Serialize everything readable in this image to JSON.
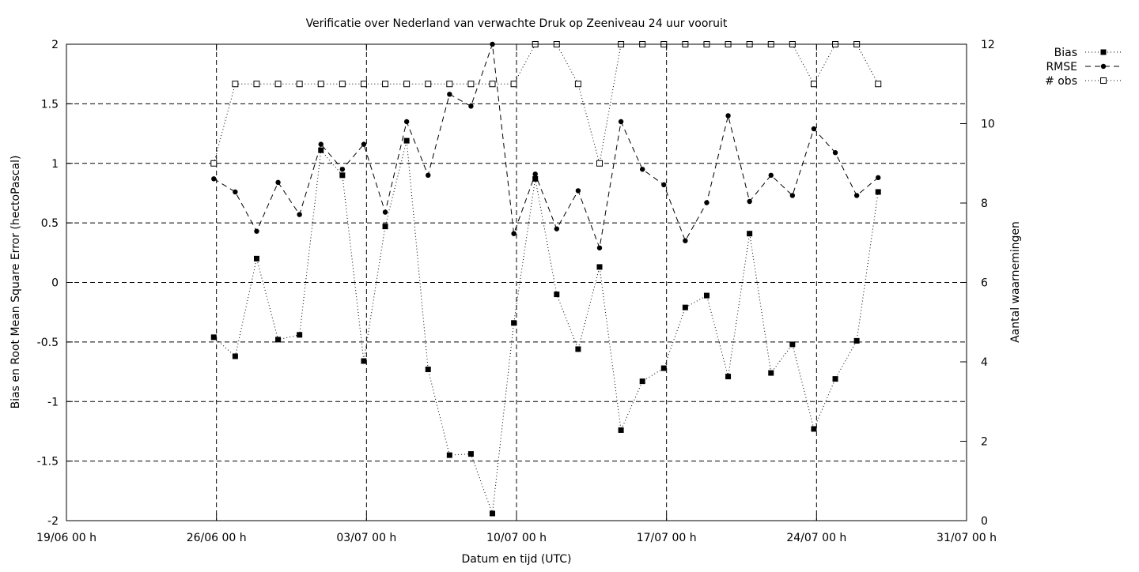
{
  "chart_data": {
    "type": "line",
    "title": "Verificatie over Nederland van verwachte Druk op Zeeniveau 24 uur vooruit",
    "xlabel": "Datum en tijd (UTC)",
    "ylabel": "Bias en Root Mean Square Error (hectoPascal)",
    "y2label": "Aantal waarnemingen",
    "xlim": [
      "2023-06-19",
      "2023-07-31"
    ],
    "ylim": [
      -2,
      2
    ],
    "y2lim": [
      0,
      12
    ],
    "x_ticks": [
      {
        "date": "2023-06-19",
        "label": "19/06 00 h"
      },
      {
        "date": "2023-06-26",
        "label": "26/06 00 h"
      },
      {
        "date": "2023-07-03",
        "label": "03/07 00 h"
      },
      {
        "date": "2023-07-10",
        "label": "10/07 00 h"
      },
      {
        "date": "2023-07-17",
        "label": "17/07 00 h"
      },
      {
        "date": "2023-07-24",
        "label": "24/07 00 h"
      },
      {
        "date": "2023-07-31",
        "label": "31/07 00 h"
      }
    ],
    "y_ticks": [
      "2",
      "1.5",
      "1",
      "0.5",
      "0",
      "-0.5",
      "-1",
      "-1.5",
      "-2"
    ],
    "y2_ticks": [
      "12",
      "10",
      "8",
      "6",
      "4",
      "2",
      "0"
    ],
    "grid": true,
    "legend_position": "top-right-outside",
    "x": [
      "2023-06-25T21:00",
      "2023-06-26T21:00",
      "2023-06-27T21:00",
      "2023-06-28T21:00",
      "2023-06-29T21:00",
      "2023-06-30T21:00",
      "2023-07-01T21:00",
      "2023-07-02T21:00",
      "2023-07-03T21:00",
      "2023-07-04T21:00",
      "2023-07-05T21:00",
      "2023-07-06T21:00",
      "2023-07-07T21:00",
      "2023-07-08T21:00",
      "2023-07-09T21:00",
      "2023-07-10T21:00",
      "2023-07-11T21:00",
      "2023-07-12T21:00",
      "2023-07-13T21:00",
      "2023-07-14T21:00",
      "2023-07-15T21:00",
      "2023-07-16T21:00",
      "2023-07-17T21:00",
      "2023-07-18T21:00",
      "2023-07-19T21:00",
      "2023-07-20T21:00",
      "2023-07-21T21:00",
      "2023-07-22T21:00",
      "2023-07-23T21:00",
      "2023-07-24T21:00",
      "2023-07-25T21:00",
      "2023-07-26T21:00"
    ],
    "series": [
      {
        "name": "Bias",
        "axis": "left",
        "line": "dotted",
        "marker": "filled-square",
        "values": [
          -0.46,
          -0.62,
          0.2,
          -0.48,
          -0.44,
          1.11,
          0.9,
          -0.66,
          0.47,
          1.19,
          -0.73,
          -1.45,
          -1.44,
          -1.94,
          -0.34,
          0.87,
          -0.1,
          -0.56,
          0.13,
          -1.24,
          -0.83,
          -0.72,
          -0.21,
          -0.11,
          -0.79,
          0.41,
          -0.76,
          -0.52,
          -1.23,
          -0.81,
          -0.49,
          0.76
        ]
      },
      {
        "name": "RMSE",
        "axis": "left",
        "line": "dashed",
        "marker": "filled-circle",
        "values": [
          0.87,
          0.76,
          0.43,
          0.84,
          0.57,
          1.16,
          0.95,
          1.16,
          0.59,
          1.35,
          0.9,
          1.58,
          1.48,
          2.0,
          0.41,
          0.91,
          0.45,
          0.77,
          0.29,
          1.35,
          0.95,
          0.82,
          0.35,
          0.67,
          1.4,
          0.68,
          0.9,
          0.73,
          1.29,
          1.09,
          0.73,
          0.88
        ]
      },
      {
        "name": "# obs",
        "axis": "right",
        "line": "dotted",
        "marker": "open-square",
        "values": [
          9,
          11,
          11,
          11,
          11,
          11,
          11,
          11,
          11,
          11,
          11,
          11,
          11,
          11,
          11,
          12,
          12,
          11,
          9,
          12,
          12,
          12,
          12,
          12,
          12,
          12,
          12,
          12,
          11,
          12,
          12,
          11
        ]
      }
    ]
  }
}
